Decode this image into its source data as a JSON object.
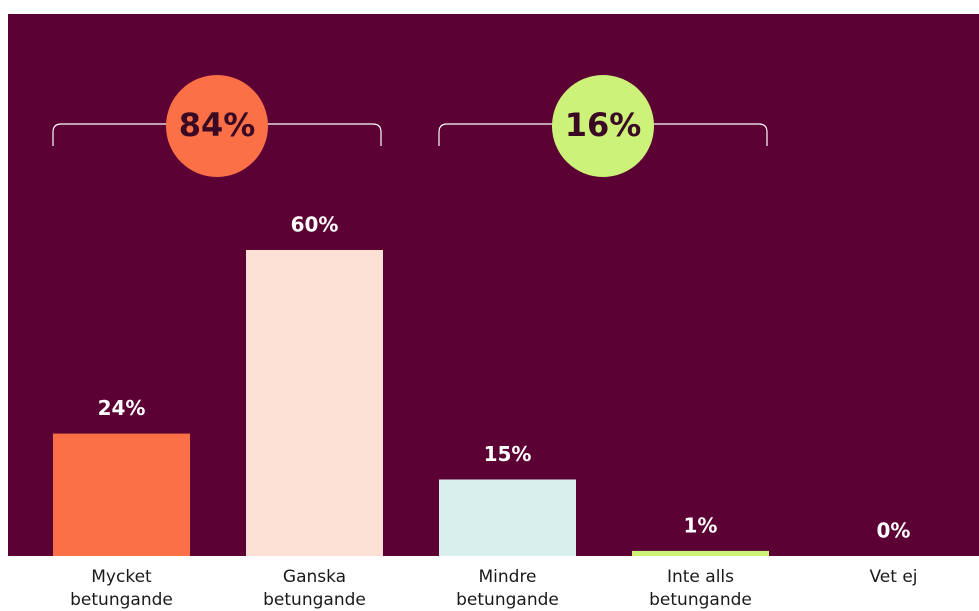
{
  "chart_data": {
    "type": "bar",
    "categories": [
      "Mycket betungande",
      "Ganska betungande",
      "Mindre betungande",
      "Inte alls betungande",
      "Vet ej"
    ],
    "values": [
      24,
      60,
      15,
      1,
      0
    ],
    "value_labels": [
      "24%",
      "60%",
      "15%",
      "1%",
      "0%"
    ],
    "colors": [
      "#fb7046",
      "#fde0d5",
      "#d9efeb",
      "#cdf27a",
      "#cdf27a"
    ],
    "background": "#5b0133",
    "ylim": [
      0,
      100
    ],
    "groups": [
      {
        "value": 84,
        "value_label": "84%",
        "color": "#fb7046"
      },
      {
        "value": 16,
        "value_label": "16%",
        "color": "#cdf27a"
      }
    ]
  }
}
